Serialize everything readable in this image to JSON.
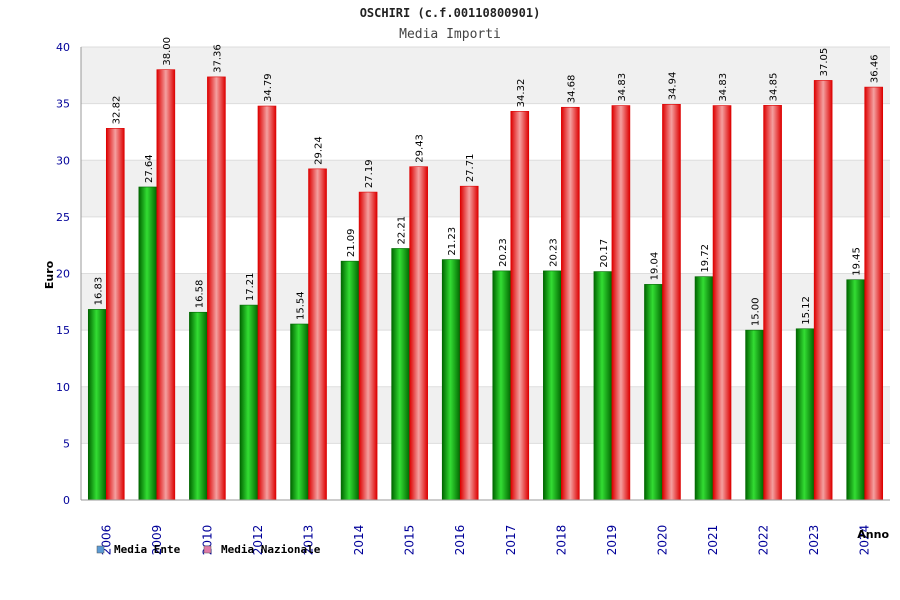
{
  "chart_data": {
    "type": "bar",
    "title": "OSCHIRI (c.f.00110800901)",
    "subtitle": "Media Importi",
    "xlabel": "Anno",
    "ylabel": "Euro",
    "ylim": [
      0,
      40
    ],
    "yticks": [
      0,
      5,
      10,
      15,
      20,
      25,
      30,
      35,
      40
    ],
    "grid": true,
    "categories": [
      "2006",
      "2009",
      "2010",
      "2012",
      "2013",
      "2014",
      "2015",
      "2016",
      "2017",
      "2018",
      "2019",
      "2020",
      "2021",
      "2022",
      "2023",
      "2024"
    ],
    "series": [
      {
        "name": "Media Ente",
        "values": [
          16.83,
          27.64,
          16.58,
          17.21,
          15.54,
          21.09,
          22.21,
          21.23,
          20.23,
          20.23,
          20.17,
          19.04,
          19.72,
          15.0,
          15.12,
          19.45
        ],
        "labels": [
          "16.83",
          "27.64",
          "16.58",
          "17.21",
          "15.54",
          "21.09",
          "22.21",
          "21.23",
          "20.23",
          "20.23",
          "20.17",
          "19.04",
          "19.72",
          "15.00",
          "15.12",
          "19.45"
        ]
      },
      {
        "name": "Media Nazionale",
        "values": [
          32.82,
          38.0,
          37.36,
          34.79,
          29.24,
          27.19,
          29.43,
          27.71,
          34.32,
          34.68,
          34.83,
          34.94,
          34.83,
          34.85,
          37.05,
          36.46
        ],
        "labels": [
          "32.82",
          "38.00",
          "37.36",
          "34.79",
          "29.24",
          "27.19",
          "29.43",
          "27.71",
          "34.32",
          "34.68",
          "34.83",
          "34.94",
          "34.83",
          "34.85",
          "37.05",
          "36.46"
        ]
      }
    ],
    "legend": [
      {
        "name": "Media Ente",
        "color": "#5b9bd5"
      },
      {
        "name": "Media Nazionale",
        "color": "#e07aa8"
      }
    ],
    "legend_position": "bottom-left",
    "colors": {
      "ente_dark": "#006600",
      "ente_light": "#33dd33",
      "naz_dark": "#dd0000",
      "naz_light": "#f4a0a0",
      "band": "#eeeeee",
      "grid": "#dddddd",
      "tick_text": "#000099"
    }
  }
}
